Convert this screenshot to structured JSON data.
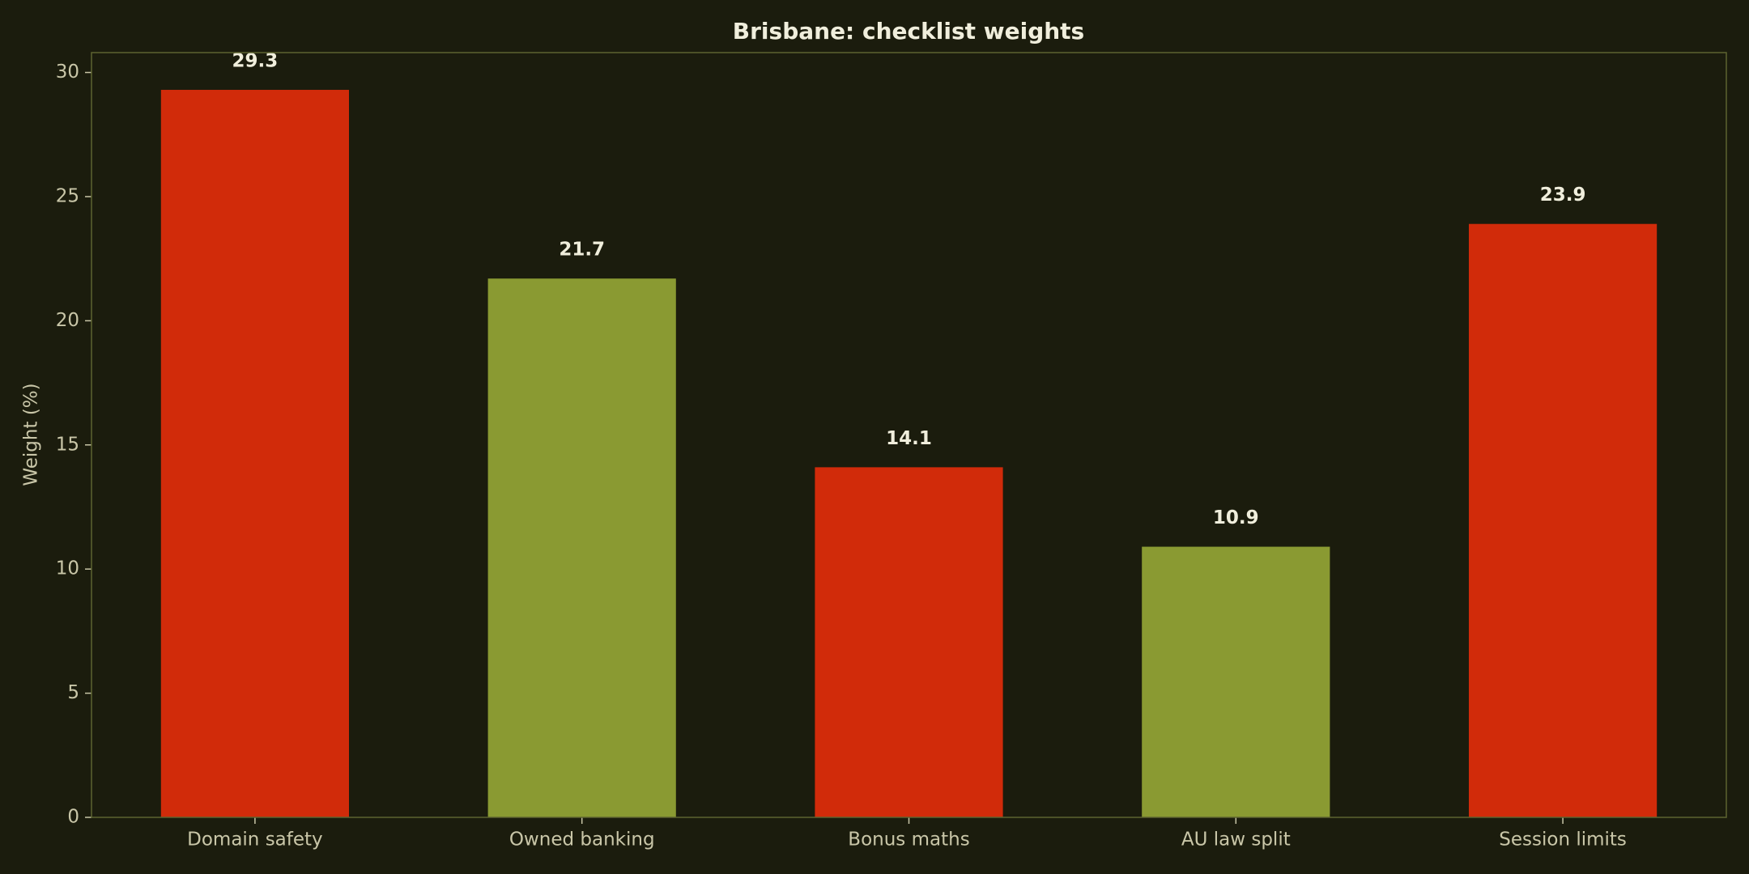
{
  "chart_data": {
    "type": "bar",
    "title": "Brisbane: checklist weights",
    "y_label": "Weight (%)",
    "categories": [
      "Domain safety",
      "Owned banking",
      "Bonus maths",
      "AU law split",
      "Session limits"
    ],
    "values": [
      29.3,
      21.7,
      14.1,
      10.9,
      23.9
    ],
    "colors": [
      "#d12b0a",
      "#8a9a32",
      "#d12b0a",
      "#8a9a32",
      "#d12b0a"
    ],
    "ylim": [
      0,
      30.8
    ],
    "yticks": [
      0,
      5,
      10,
      15,
      20,
      25,
      30
    ],
    "grid": false
  }
}
